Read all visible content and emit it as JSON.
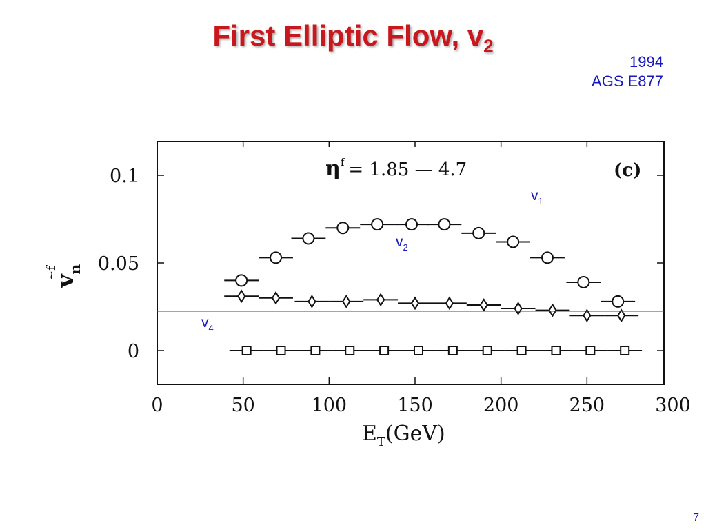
{
  "slide": {
    "title_main": "First Elliptic Flow, v",
    "title_sub": "2",
    "corner_line1": "1994",
    "corner_line2": "AGS E877",
    "page_number": "7"
  },
  "chart_data": {
    "type": "scatter",
    "panel_label": "(c)",
    "eta_label": "= 1.85 — 4.7",
    "eta_symbol": "η",
    "eta_super": "f",
    "xlabel_main": "E",
    "xlabel_sub": "T",
    "xlabel_unit": "(GeV)",
    "ylabel_main": "v",
    "ylabel_sub": "n",
    "ylabel_super": "~f",
    "xlim": [
      0,
      300
    ],
    "ylim": [
      -0.02,
      0.12
    ],
    "x_ticks": [
      0,
      50,
      100,
      150,
      200,
      250,
      300
    ],
    "x_tick_labels": [
      "0",
      "50",
      "100",
      "150",
      "200",
      "250",
      "300"
    ],
    "y_ticks": [
      0,
      0.05,
      0.1
    ],
    "y_tick_labels": [
      "0",
      "0.05",
      "0.1"
    ],
    "x_halfwidth": 10,
    "annotations": {
      "v1": {
        "main": "v",
        "sub": "1"
      },
      "v2": {
        "main": "v",
        "sub": "2"
      },
      "v4": {
        "main": "v",
        "sub": "4"
      }
    },
    "reference_line_y": 0.0225,
    "series": [
      {
        "marker": "circle",
        "x": [
          49,
          69,
          88,
          108,
          128,
          148,
          167,
          187,
          207,
          227,
          248,
          268
        ],
        "y": [
          0.04,
          0.053,
          0.064,
          0.07,
          0.072,
          0.072,
          0.072,
          0.067,
          0.062,
          0.053,
          0.039,
          0.028
        ]
      },
      {
        "marker": "diamond",
        "x": [
          49,
          69,
          90,
          110,
          130,
          150,
          170,
          190,
          210,
          230,
          250,
          270
        ],
        "y": [
          0.031,
          0.03,
          0.028,
          0.028,
          0.029,
          0.027,
          0.027,
          0.026,
          0.024,
          0.023,
          0.02,
          0.02
        ]
      },
      {
        "marker": "square",
        "x": [
          52,
          72,
          92,
          112,
          132,
          152,
          172,
          192,
          212,
          232,
          252,
          272
        ],
        "y": [
          0,
          0,
          0,
          0,
          0,
          0,
          0,
          0,
          0,
          0,
          0,
          0
        ]
      }
    ]
  }
}
